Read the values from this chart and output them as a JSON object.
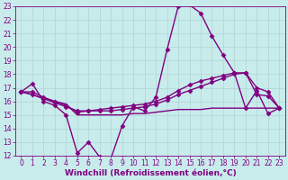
{
  "xlabel": "Windchill (Refroidissement éolien,°C)",
  "xlim": [
    -0.5,
    23.5
  ],
  "ylim": [
    12,
    23
  ],
  "xticks": [
    0,
    1,
    2,
    3,
    4,
    5,
    6,
    7,
    8,
    9,
    10,
    11,
    12,
    13,
    14,
    15,
    16,
    17,
    18,
    19,
    20,
    21,
    22,
    23
  ],
  "yticks": [
    12,
    13,
    14,
    15,
    16,
    17,
    18,
    19,
    20,
    21,
    22,
    23
  ],
  "bg_color": "#c8ecec",
  "grid_color": "#b0d4d4",
  "line_color": "#800080",
  "line1_x": [
    0,
    1,
    2,
    3,
    4,
    5,
    6,
    7,
    8,
    9,
    10,
    11,
    12,
    13,
    14,
    15,
    16,
    17,
    18,
    19,
    20,
    21,
    22,
    23
  ],
  "line1_y": [
    16.7,
    17.3,
    16.0,
    15.7,
    15.0,
    12.2,
    13.0,
    11.9,
    11.8,
    14.2,
    15.6,
    15.3,
    16.3,
    19.8,
    23.0,
    23.1,
    22.5,
    20.8,
    19.4,
    18.1,
    15.5,
    16.8,
    15.1,
    15.5
  ],
  "line2_x": [
    0,
    1,
    2,
    3,
    4,
    5,
    6,
    7,
    8,
    9,
    10,
    11,
    12,
    13,
    14,
    15,
    16,
    17,
    18,
    19,
    20,
    21,
    22,
    23
  ],
  "line2_y": [
    16.7,
    16.5,
    16.2,
    15.9,
    15.6,
    15.3,
    15.3,
    15.3,
    15.3,
    15.4,
    15.5,
    15.6,
    15.8,
    16.1,
    16.5,
    16.8,
    17.1,
    17.4,
    17.7,
    18.0,
    18.1,
    17.0,
    16.7,
    15.5
  ],
  "line3_x": [
    0,
    1,
    2,
    3,
    4,
    5,
    6,
    7,
    8,
    9,
    10,
    11,
    12,
    13,
    14,
    15,
    16,
    17,
    18,
    19,
    20,
    21,
    22,
    23
  ],
  "line3_y": [
    16.7,
    16.7,
    16.3,
    16.0,
    15.7,
    15.2,
    15.3,
    15.4,
    15.5,
    15.6,
    15.7,
    15.8,
    16.0,
    16.3,
    16.8,
    17.2,
    17.5,
    17.7,
    17.9,
    18.1,
    18.1,
    16.5,
    16.4,
    15.5
  ],
  "line4_x": [
    0,
    1,
    2,
    3,
    4,
    5,
    6,
    7,
    8,
    9,
    10,
    11,
    12,
    13,
    14,
    15,
    16,
    17,
    18,
    19,
    20,
    21,
    22,
    23
  ],
  "line4_y": [
    16.7,
    16.5,
    16.2,
    16.0,
    15.8,
    15.0,
    15.0,
    15.0,
    15.0,
    15.0,
    15.1,
    15.1,
    15.2,
    15.3,
    15.4,
    15.4,
    15.4,
    15.5,
    15.5,
    15.5,
    15.5,
    15.5,
    15.5,
    15.5
  ],
  "marker": "D",
  "marker_size": 2.5,
  "line_width": 1.0,
  "tick_fontsize": 5.5,
  "xlabel_fontsize": 6.5
}
